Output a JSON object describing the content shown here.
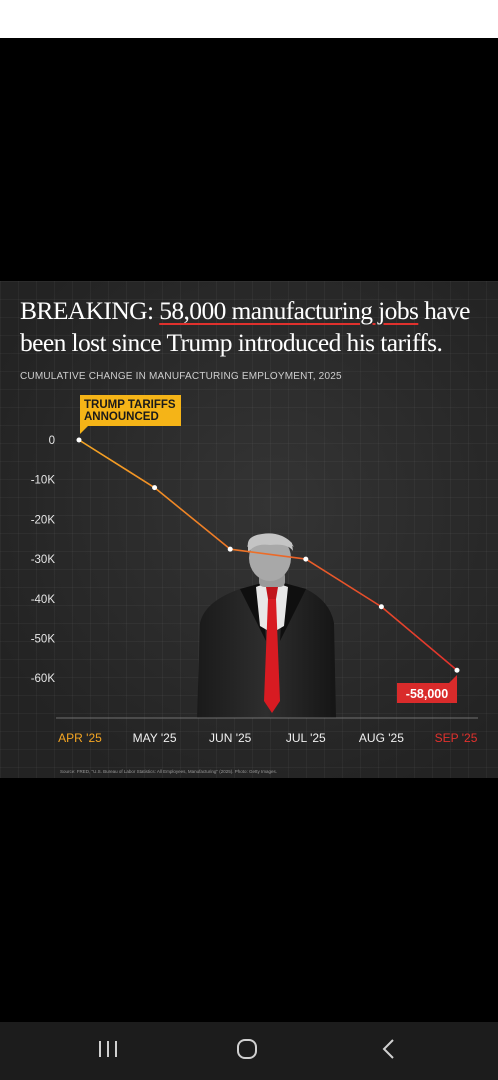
{
  "headline": {
    "prefix": "BREAKING: ",
    "highlight": "58,000 manufacturing jobs",
    "suffix": " have been lost since Trump introduced his tariffs."
  },
  "subtitle": "CUMULATIVE CHANGE IN MANUFACTURING EMPLOYMENT, 2025",
  "source_note": "Source: FRED, \"U.S. Bureau of Labor Statistics: All Employees, Manufacturing\" (2025). Photo: Getty Images.",
  "photo_subject": "trump-photo",
  "colors": {
    "line_start": "#f5a623",
    "line_end": "#e2312d",
    "callout_bg": "#f5b417",
    "end_label_bg": "#d92b2b",
    "background": "#2b2b2b"
  },
  "chart_data": {
    "type": "line",
    "title": "CUMULATIVE CHANGE IN MANUFACTURING EMPLOYMENT, 2025",
    "xlabel": "",
    "ylabel": "",
    "categories": [
      "APR '25",
      "MAY '25",
      "JUN '25",
      "JUL '25",
      "AUG '25",
      "SEP '25"
    ],
    "series": [
      {
        "values": [
          0,
          -12000,
          -27500,
          -30000,
          -42000,
          -58000
        ]
      }
    ],
    "ylim": [
      -70000,
      0
    ],
    "y_ticks": [
      0,
      -10000,
      -20000,
      -30000,
      -40000,
      -50000,
      -60000
    ],
    "y_tick_labels": [
      "0",
      "-10K",
      "-20K",
      "-30K",
      "-40K",
      "-50K",
      "-60K"
    ],
    "grid": false,
    "annotations": {
      "start_callout": "TRUMP TARIFFS\nANNOUNCED",
      "end_label": "-58,000"
    }
  },
  "system_nav": {
    "recent_apps_label": "Recent apps",
    "home_label": "Home",
    "back_label": "Back"
  }
}
